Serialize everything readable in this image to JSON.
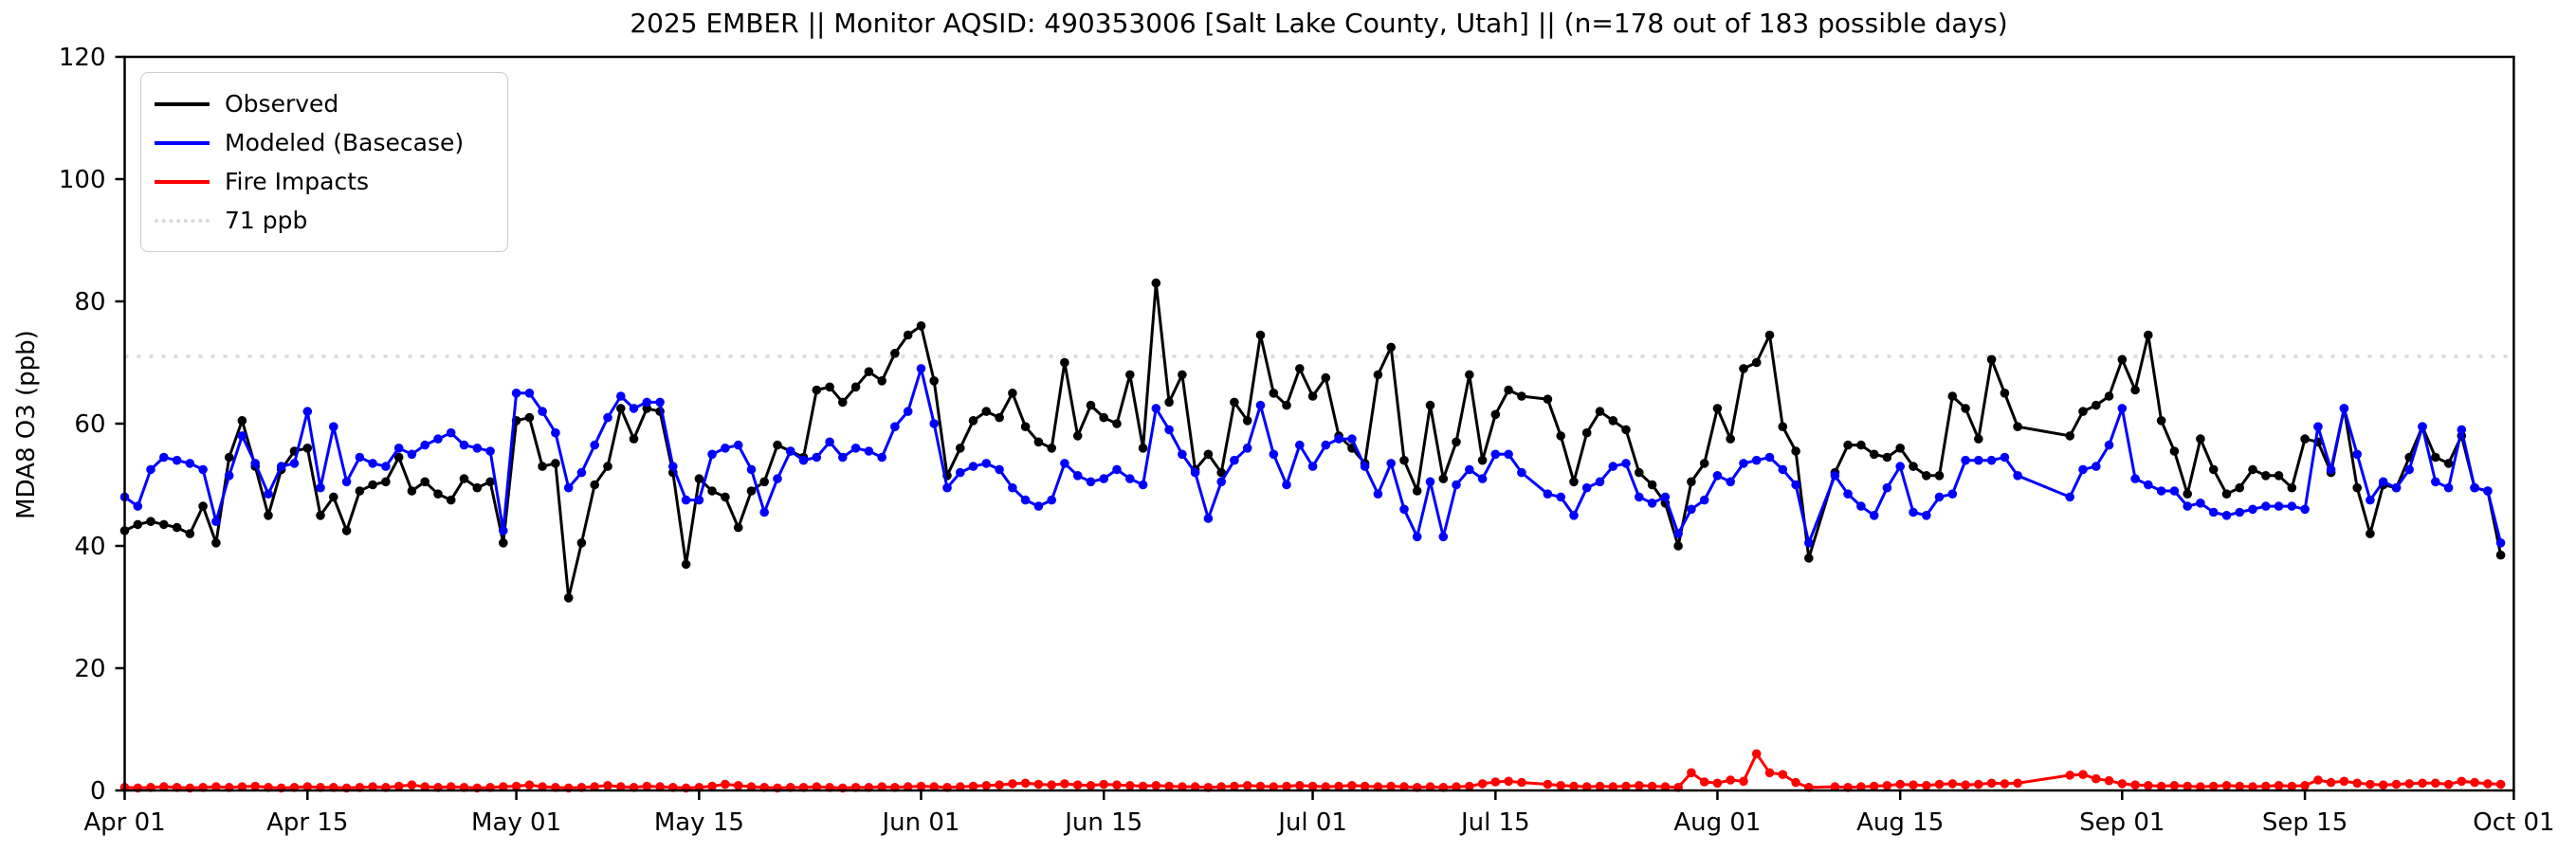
{
  "title": "2025 EMBER || Monitor AQSID: 490353006 [Salt Lake County, Utah] || (n=178 out of 183 possible days)",
  "legend": {
    "items": [
      {
        "label": "Observed",
        "color": "#000000",
        "style": "solid"
      },
      {
        "label": "Modeled (Basecase)",
        "color": "#0000ff",
        "style": "solid"
      },
      {
        "label": "Fire Impacts",
        "color": "#ff0000",
        "style": "solid"
      },
      {
        "label": "71 ppb",
        "color": "#d9d9d9",
        "style": "dotted"
      }
    ]
  },
  "chart_data": {
    "type": "line",
    "title": "2025 EMBER || Monitor AQSID: 490353006 [Salt Lake County, Utah] || (n=178 out of 183 possible days)",
    "xlabel": "",
    "ylabel": "MDA8 O3 (ppb)",
    "ylim": [
      0,
      120
    ],
    "y_ticks": [
      0,
      20,
      40,
      60,
      80,
      100,
      120
    ],
    "x_ticks": [
      {
        "day": 0,
        "label": "Apr 01"
      },
      {
        "day": 14,
        "label": "Apr 15"
      },
      {
        "day": 30,
        "label": "May 01"
      },
      {
        "day": 44,
        "label": "May 15"
      },
      {
        "day": 61,
        "label": "Jun 01"
      },
      {
        "day": 75,
        "label": "Jun 15"
      },
      {
        "day": 91,
        "label": "Jul 01"
      },
      {
        "day": 105,
        "label": "Jul 15"
      },
      {
        "day": 122,
        "label": "Aug 01"
      },
      {
        "day": 136,
        "label": "Aug 15"
      },
      {
        "day": 153,
        "label": "Sep 01"
      },
      {
        "day": 167,
        "label": "Sep 15"
      },
      {
        "day": 183,
        "label": "Oct 01"
      }
    ],
    "start_date": "2025-04-01",
    "end_date": "2025-09-30",
    "threshold_ppb": 71,
    "threshold_label": "71 ppb",
    "legend_position": "upper left",
    "grid": false,
    "series": [
      {
        "name": "Observed",
        "color": "#000000",
        "values": [
          42.5,
          43.5,
          44,
          43.5,
          43,
          42,
          46.5,
          40.5,
          54.5,
          60.5,
          53,
          45,
          52.5,
          55.5,
          56,
          45,
          48,
          42.5,
          49,
          50,
          50.5,
          54.5,
          49,
          50.5,
          48.5,
          47.5,
          51,
          49.5,
          50.5,
          40.5,
          60.5,
          61,
          53,
          53.5,
          31.5,
          40.5,
          50,
          53,
          62.5,
          57.5,
          62.5,
          62,
          52,
          37,
          51,
          49,
          48,
          43,
          49,
          50.5,
          56.5,
          55.5,
          54.5,
          65.5,
          66,
          63.5,
          66,
          68.5,
          67,
          71.5,
          74.5,
          76,
          67,
          51.5,
          56,
          60.5,
          62,
          61,
          65,
          59.5,
          57,
          56,
          70,
          58,
          63,
          61,
          60,
          68,
          56,
          83,
          63.5,
          68,
          52.5,
          55,
          52,
          63.5,
          60.5,
          74.5,
          65,
          63,
          69,
          64.5,
          67.5,
          58,
          56,
          53.5,
          68,
          72.5,
          54,
          49,
          63,
          51,
          57,
          68,
          54,
          61.5,
          65.5,
          64.5,
          null,
          64,
          58,
          50.5,
          58.5,
          62,
          60.5,
          59,
          52,
          50,
          47,
          40,
          50.5,
          53.5,
          62.5,
          57.5,
          69,
          70,
          74.5,
          59.5,
          55.5,
          38,
          null,
          52,
          56.5,
          56.5,
          55,
          54.5,
          56,
          53,
          51.5,
          51.5,
          64.5,
          62.5,
          57.5,
          70.5,
          65,
          59.5,
          null,
          null,
          null,
          58,
          62,
          63,
          64.5,
          70.5,
          65.5,
          74.5,
          60.5,
          55.5,
          48.5,
          57.5,
          52.5,
          48.5,
          49.5,
          52.5,
          51.5,
          51.5,
          49.5,
          57.5,
          57,
          52,
          62.5,
          49.5,
          42,
          50,
          49.5,
          54.5,
          59.5,
          54.5,
          53.5,
          58,
          49.5,
          49,
          38.5
        ]
      },
      {
        "name": "Modeled (Basecase)",
        "color": "#0000ff",
        "values": [
          48,
          46.5,
          52.5,
          54.5,
          54,
          53.5,
          52.5,
          44,
          51.5,
          58,
          53.5,
          48.5,
          53,
          53.5,
          62,
          49.5,
          59.5,
          50.5,
          54.5,
          53.5,
          53,
          56,
          55,
          56.5,
          57.5,
          58.5,
          56.5,
          56,
          55.5,
          42.5,
          65,
          65,
          62,
          58.5,
          49.5,
          52,
          56.5,
          61,
          64.5,
          62.5,
          63.5,
          63.5,
          53,
          47.5,
          47.5,
          55,
          56,
          56.5,
          52.5,
          45.5,
          51,
          55.5,
          54,
          54.5,
          57,
          54.5,
          56,
          55.5,
          54.5,
          59.5,
          62,
          69,
          60,
          49.5,
          52,
          53,
          53.5,
          52.5,
          49.5,
          47.5,
          46.5,
          47.5,
          53.5,
          51.5,
          50.5,
          51,
          52.5,
          51,
          50,
          62.5,
          59,
          55,
          52,
          44.5,
          50.5,
          54,
          56,
          63,
          55,
          50,
          56.5,
          53,
          56.5,
          57.5,
          57.5,
          53,
          48.5,
          53.5,
          46,
          41.5,
          50.5,
          41.5,
          50,
          52.5,
          51,
          55,
          55,
          52,
          null,
          48.5,
          48,
          45,
          49.5,
          50.5,
          53,
          53.5,
          48,
          47,
          48,
          42,
          46,
          47.5,
          51.5,
          50.5,
          53.5,
          54,
          54.5,
          52.5,
          50,
          40.5,
          null,
          51.5,
          48.5,
          46.5,
          45,
          49.5,
          53,
          45.5,
          45,
          48,
          48.5,
          54,
          54,
          54,
          54.5,
          51.5,
          null,
          null,
          null,
          48,
          52.5,
          53,
          56.5,
          62.5,
          51,
          50,
          49,
          49,
          46.5,
          47,
          45.5,
          45,
          45.5,
          46,
          46.5,
          46.5,
          46.5,
          46,
          59.5,
          52.5,
          62.5,
          55,
          47.5,
          50.5,
          49.5,
          52.5,
          59.5,
          50.5,
          49.5,
          59,
          49.5,
          49,
          40.5
        ]
      },
      {
        "name": "Fire Impacts",
        "color": "#ff0000",
        "values": [
          0.5,
          0.4,
          0.5,
          0.6,
          0.5,
          0.4,
          0.5,
          0.6,
          0.5,
          0.6,
          0.7,
          0.5,
          0.4,
          0.5,
          0.6,
          0.5,
          0.5,
          0.4,
          0.5,
          0.6,
          0.5,
          0.7,
          0.9,
          0.6,
          0.5,
          0.6,
          0.5,
          0.4,
          0.5,
          0.6,
          0.7,
          0.9,
          0.6,
          0.5,
          0.4,
          0.5,
          0.6,
          0.8,
          0.6,
          0.5,
          0.7,
          0.6,
          0.5,
          0.4,
          0.5,
          0.7,
          1.0,
          0.8,
          0.6,
          0.5,
          0.4,
          0.5,
          0.5,
          0.6,
          0.5,
          0.4,
          0.5,
          0.5,
          0.6,
          0.5,
          0.6,
          0.7,
          0.6,
          0.5,
          0.6,
          0.7,
          0.8,
          0.9,
          1.1,
          1.2,
          1.0,
          0.9,
          1.1,
          0.9,
          0.8,
          1.0,
          0.9,
          0.8,
          0.7,
          0.8,
          0.7,
          0.6,
          0.6,
          0.5,
          0.6,
          0.7,
          0.8,
          0.7,
          0.6,
          0.7,
          0.8,
          0.7,
          0.6,
          0.7,
          0.8,
          0.7,
          0.6,
          0.7,
          0.6,
          0.5,
          0.6,
          0.5,
          0.6,
          0.7,
          1.1,
          1.4,
          1.5,
          1.3,
          null,
          1.0,
          0.8,
          0.7,
          0.6,
          0.7,
          0.6,
          0.7,
          0.8,
          0.7,
          0.6,
          0.5,
          2.9,
          1.4,
          1.2,
          1.7,
          1.5,
          6.0,
          2.9,
          2.6,
          1.3,
          0.5,
          null,
          0.6,
          0.5,
          0.6,
          0.7,
          0.8,
          1.0,
          0.9,
          0.8,
          1.0,
          1.1,
          0.9,
          1.0,
          1.2,
          1.1,
          1.2,
          null,
          null,
          null,
          2.5,
          2.6,
          1.9,
          1.6,
          1.1,
          0.9,
          0.8,
          0.7,
          0.8,
          0.7,
          0.6,
          0.7,
          0.8,
          0.7,
          0.6,
          0.7,
          0.8,
          0.7,
          0.8,
          1.7,
          1.3,
          1.5,
          1.2,
          1.0,
          0.9,
          1.0,
          1.1,
          1.2,
          1.2,
          1.0,
          1.5,
          1.3,
          1.1,
          1.0
        ]
      }
    ]
  }
}
